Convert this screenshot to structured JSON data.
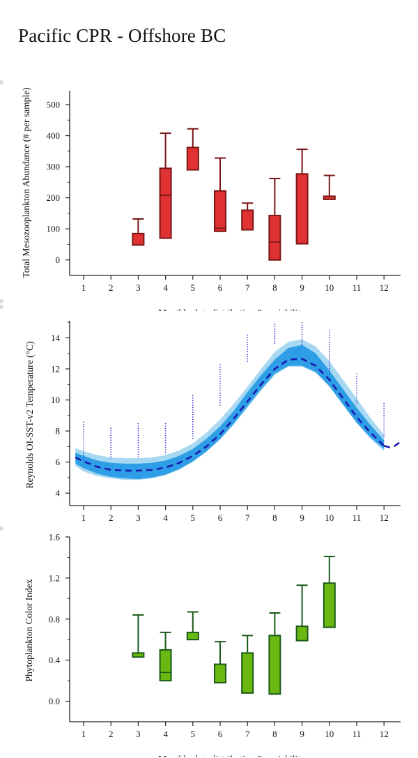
{
  "page": {
    "title": "Pacific CPR - Offshore BC"
  },
  "chart_data": [
    {
      "type": "box",
      "ylabel": "Total Mesozooplankton Abundance (# per sample)",
      "xlabel": "Monthly data distribution & variability",
      "categories": [
        "1",
        "2",
        "3",
        "4",
        "5",
        "6",
        "7",
        "8",
        "9",
        "10",
        "11",
        "12"
      ],
      "yticks": [
        "0",
        "100",
        "200",
        "300",
        "400",
        "500"
      ],
      "ylim": [
        -50,
        545
      ],
      "color": "#e03232",
      "edge": "#7a1414",
      "boxes": [
        {
          "month": 3,
          "q1": 48,
          "median": 48,
          "q3": 85,
          "whisker_hi": 132
        },
        {
          "month": 4,
          "q1": 70,
          "median": 208,
          "q3": 295,
          "whisker_hi": 408
        },
        {
          "month": 5,
          "q1": 290,
          "median": 362,
          "q3": 362,
          "whisker_hi": 422
        },
        {
          "month": 6,
          "q1": 92,
          "median": 102,
          "q3": 222,
          "whisker_hi": 328
        },
        {
          "month": 7,
          "q1": 97,
          "median": 160,
          "q3": 160,
          "whisker_hi": 183
        },
        {
          "month": 8,
          "q1": 0,
          "median": 58,
          "q3": 143,
          "whisker_hi": 262
        },
        {
          "month": 9,
          "q1": 52,
          "median": 52,
          "q3": 277,
          "whisker_hi": 356
        },
        {
          "month": 10,
          "q1": 195,
          "median": 205,
          "q3": 205,
          "whisker_hi": 272
        }
      ]
    },
    {
      "type": "area",
      "ylabel": "Reynolds OI-SST-v2 Temperature (°C)",
      "categories": [
        "1",
        "2",
        "3",
        "4",
        "5",
        "6",
        "7",
        "8",
        "9",
        "10",
        "11",
        "12"
      ],
      "yticks": [
        "4",
        "6",
        "8",
        "10",
        "12",
        "14"
      ],
      "ylim": [
        3.2,
        15.1
      ],
      "colors": {
        "outer": "#a8d8f2",
        "inner": "#2e9fe6",
        "mean": "#1a1ab0",
        "points": "#2222cc"
      },
      "x": [
        0.7,
        1,
        1.5,
        2,
        2.5,
        3,
        3.5,
        4,
        4.5,
        5,
        5.5,
        6,
        6.5,
        7,
        7.5,
        8,
        8.5,
        9,
        9.5,
        10,
        10.5,
        11,
        11.5,
        12
      ],
      "mean": [
        6.3,
        6.05,
        5.7,
        5.5,
        5.45,
        5.45,
        5.5,
        5.65,
        5.95,
        6.4,
        7.0,
        7.8,
        8.8,
        9.9,
        11.0,
        12.0,
        12.6,
        12.65,
        12.2,
        11.3,
        10.1,
        8.9,
        7.9,
        7.05
      ],
      "inner_lo": [
        5.9,
        5.6,
        5.25,
        5.05,
        4.95,
        4.9,
        5.0,
        5.2,
        5.55,
        6.05,
        6.7,
        7.5,
        8.5,
        9.6,
        10.7,
        11.7,
        12.2,
        12.2,
        11.8,
        10.9,
        9.7,
        8.55,
        7.6,
        6.85
      ],
      "inner_hi": [
        6.6,
        6.4,
        6.1,
        5.95,
        5.9,
        5.9,
        5.95,
        6.1,
        6.4,
        6.85,
        7.5,
        8.3,
        9.3,
        10.5,
        11.6,
        12.6,
        13.35,
        13.55,
        13.0,
        11.9,
        10.7,
        9.5,
        8.4,
        7.4
      ],
      "outer_lo": [
        5.75,
        5.4,
        5.1,
        4.95,
        4.85,
        4.85,
        4.95,
        5.15,
        5.5,
        6.0,
        6.65,
        7.45,
        8.4,
        9.5,
        10.6,
        11.6,
        12.15,
        12.15,
        11.75,
        10.85,
        9.7,
        8.5,
        7.5,
        6.7
      ],
      "outer_hi": [
        6.9,
        6.7,
        6.45,
        6.3,
        6.25,
        6.25,
        6.3,
        6.45,
        6.75,
        7.2,
        7.9,
        8.75,
        9.75,
        10.85,
        12.0,
        13.1,
        13.75,
        13.9,
        13.45,
        12.5,
        11.3,
        10.1,
        8.85,
        7.75
      ],
      "tail": {
        "x": [
          12,
          12.2,
          12.4,
          12.6
        ],
        "y": [
          7.05,
          6.95,
          7.05,
          7.3
        ]
      },
      "points": [
        {
          "x": 1,
          "lo": 6.0,
          "hi": 8.6
        },
        {
          "x": 2,
          "lo": 6.2,
          "hi": 8.2
        },
        {
          "x": 3,
          "lo": 6.3,
          "hi": 8.5
        },
        {
          "x": 4,
          "lo": 6.5,
          "hi": 8.5
        },
        {
          "x": 5,
          "lo": 7.5,
          "hi": 10.3
        },
        {
          "x": 6,
          "lo": 9.6,
          "hi": 12.3
        },
        {
          "x": 7,
          "lo": 12.4,
          "hi": 14.2
        },
        {
          "x": 8,
          "lo": 13.6,
          "hi": 14.9
        },
        {
          "x": 9,
          "lo": 13.5,
          "hi": 15.0
        },
        {
          "x": 10,
          "lo": 11.8,
          "hi": 14.5
        },
        {
          "x": 11,
          "lo": 9.7,
          "hi": 11.7
        },
        {
          "x": 12,
          "lo": 7.6,
          "hi": 9.8
        }
      ]
    },
    {
      "type": "box",
      "ylabel": "Phytoplankton Color Index",
      "xlabel": "Monthly data distribution & variability",
      "categories": [
        "1",
        "2",
        "3",
        "4",
        "5",
        "6",
        "7",
        "8",
        "9",
        "10",
        "11",
        "12"
      ],
      "yticks": [
        "0.0",
        "0.4",
        "0.8",
        "1.2",
        "1.6"
      ],
      "ylim": [
        -0.2,
        1.6
      ],
      "color": "#6cb812",
      "edge": "#1a5a1a",
      "boxes": [
        {
          "month": 3,
          "q1": 0.43,
          "median": 0.43,
          "q3": 0.47,
          "whisker_hi": 0.84
        },
        {
          "month": 4,
          "q1": 0.2,
          "median": 0.28,
          "q3": 0.5,
          "whisker_hi": 0.67
        },
        {
          "month": 5,
          "q1": 0.6,
          "median": 0.6,
          "q3": 0.67,
          "whisker_hi": 0.87
        },
        {
          "month": 6,
          "q1": 0.18,
          "median": 0.18,
          "q3": 0.36,
          "whisker_hi": 0.58
        },
        {
          "month": 7,
          "q1": 0.08,
          "median": 0.08,
          "q3": 0.47,
          "whisker_hi": 0.64
        },
        {
          "month": 8,
          "q1": 0.07,
          "median": 0.07,
          "q3": 0.64,
          "whisker_hi": 0.86
        },
        {
          "month": 9,
          "q1": 0.59,
          "median": 0.59,
          "q3": 0.73,
          "whisker_hi": 1.13
        },
        {
          "month": 10,
          "q1": 0.72,
          "median": 0.72,
          "q3": 1.15,
          "whisker_hi": 1.41
        }
      ]
    }
  ]
}
